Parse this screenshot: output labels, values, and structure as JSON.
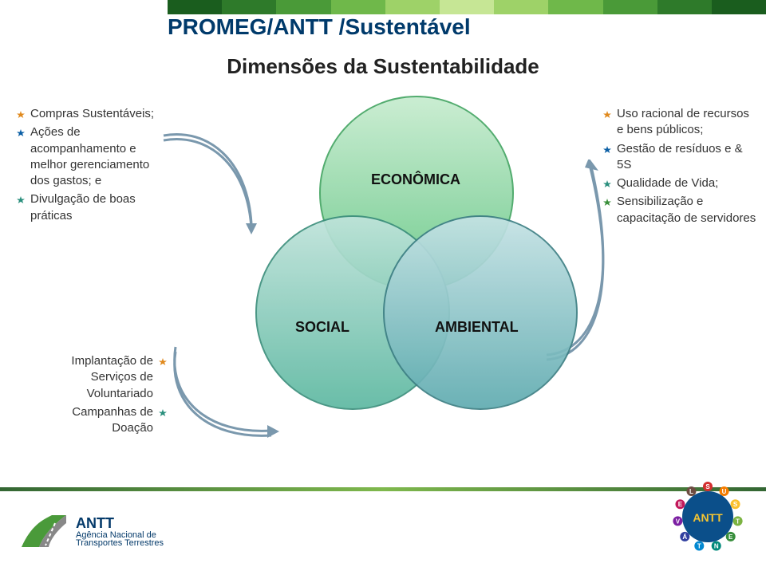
{
  "header": {
    "title": "PROMEG/ANTT /Sustentável",
    "subtitle": "Dimensões da Sustentabilidade",
    "title_color": "#003a6b",
    "stripe_colors": [
      "#1a5d1e",
      "#2e7a2a",
      "#4a9a38",
      "#6fb84a",
      "#9ed268",
      "#c6e695",
      "#9ed268",
      "#6fb84a",
      "#4a9a38",
      "#2e7a2a",
      "#1a5d1e"
    ]
  },
  "venn": {
    "economica": {
      "label": "ECONÔMICA",
      "fill_top": "#c8ecd0",
      "fill_bot": "#6bc98a",
      "border": "#4aa868"
    },
    "social": {
      "label": "SOCIAL",
      "fill_top": "#bfe3da",
      "fill_bot": "#5db8a1",
      "border": "#3c8f7c"
    },
    "ambiental": {
      "label": "AMBIENTAL",
      "fill_top": "#c4e2e4",
      "fill_bot": "#5fabb0",
      "border": "#3d7f84"
    }
  },
  "bullet_colors": {
    "orange": "#e08a1e",
    "blue": "#0b5fa5",
    "teal": "#2a8f7d",
    "green": "#3a8f3a"
  },
  "left_box": {
    "items": [
      {
        "color": "orange",
        "text": "Compras Sustentáveis;"
      },
      {
        "color": "blue",
        "text": "Ações de acompanhamento e melhor gerenciamento dos gastos; e"
      },
      {
        "color": "teal",
        "text": "Divulgação de boas práticas"
      }
    ]
  },
  "right_box": {
    "items": [
      {
        "color": "orange",
        "text": "Uso racional de recursos e bens públicos;"
      },
      {
        "color": "blue",
        "text": "Gestão de resíduos e & 5S"
      },
      {
        "color": "teal",
        "text": "Qualidade de Vida;"
      },
      {
        "color": "green",
        "text": "Sensibilização e capacitação de servidores"
      }
    ]
  },
  "bottom_left_box": {
    "items": [
      {
        "color": "orange",
        "text": "Implantação de Serviços de Voluntariado"
      },
      {
        "color": "teal",
        "text": "Campanhas de Doação"
      }
    ]
  },
  "arrow_color": "#7a98ad",
  "footer": {
    "line_colors": [
      "#336633",
      "#7fb84d",
      "#336633"
    ],
    "antt": {
      "name": "ANTT",
      "line2": "Agência Nacional de",
      "line3": "Transportes Terrestres",
      "road_green": "#4a9a3a",
      "road_grey": "#777"
    },
    "sust_ring_letters": "SUSTENTÁVEL",
    "sust_center_text": "ANTT",
    "sust_dot_colors": [
      "#d32f2f",
      "#f57c00",
      "#fbc02d",
      "#7cb342",
      "#388e3c",
      "#00897b",
      "#0288d1",
      "#303f9f",
      "#7b1fa2",
      "#c2185b",
      "#6d4c41"
    ]
  }
}
